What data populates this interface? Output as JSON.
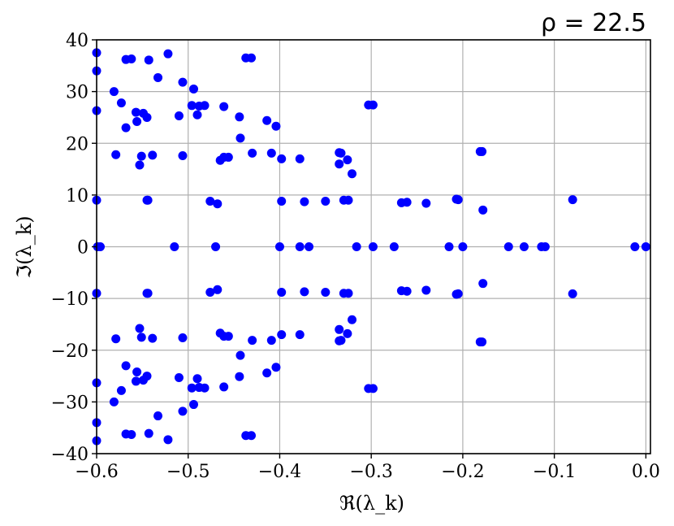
{
  "chart_data": {
    "type": "scatter",
    "title": "ρ = 22.5",
    "xlabel": "ℜ(λ_k)",
    "ylabel": "ℑ(λ_k)",
    "xlim": [
      -0.6,
      0.005
    ],
    "ylim": [
      -40,
      40
    ],
    "xticks": [
      -0.6,
      -0.5,
      -0.4,
      -0.3,
      -0.2,
      -0.1,
      0.0
    ],
    "xtick_labels": [
      "−0.6",
      "−0.5",
      "−0.4",
      "−0.3",
      "−0.2",
      "−0.1",
      "0.0"
    ],
    "yticks": [
      40,
      30,
      20,
      10,
      0,
      -10,
      -20,
      -30,
      -40
    ],
    "ytick_labels": [
      "40",
      "30",
      "20",
      "10",
      "0",
      "−10",
      "−20",
      "−30",
      "−40"
    ],
    "grid": true,
    "marker_color": "#0000ff",
    "points_upper": [
      [
        -0.6,
        37.5
      ],
      [
        -0.6,
        34.0
      ],
      [
        -0.6,
        26.3
      ],
      [
        -0.6,
        9.0
      ],
      [
        -0.581,
        30.0
      ],
      [
        -0.579,
        17.8
      ],
      [
        -0.573,
        27.8
      ],
      [
        -0.568,
        36.2
      ],
      [
        -0.562,
        36.3
      ],
      [
        -0.568,
        23.0
      ],
      [
        -0.557,
        26.0
      ],
      [
        -0.556,
        24.2
      ],
      [
        -0.553,
        15.8
      ],
      [
        -0.551,
        17.5
      ],
      [
        -0.549,
        25.8
      ],
      [
        -0.545,
        25.0
      ],
      [
        -0.545,
        9.0
      ],
      [
        -0.544,
        9.0
      ],
      [
        -0.543,
        36.1
      ],
      [
        -0.539,
        17.7
      ],
      [
        -0.533,
        32.7
      ],
      [
        -0.522,
        37.3
      ],
      [
        -0.51,
        25.3
      ],
      [
        -0.506,
        31.8
      ],
      [
        -0.506,
        17.6
      ],
      [
        -0.496,
        27.3
      ],
      [
        -0.494,
        30.5
      ],
      [
        -0.49,
        25.5
      ],
      [
        -0.488,
        27.2
      ],
      [
        -0.482,
        27.3
      ],
      [
        -0.476,
        8.8
      ],
      [
        -0.468,
        8.3
      ],
      [
        -0.465,
        16.7
      ],
      [
        -0.461,
        27.1
      ],
      [
        -0.461,
        17.3
      ],
      [
        -0.456,
        17.3
      ],
      [
        -0.444,
        25.1
      ],
      [
        -0.443,
        21.0
      ],
      [
        -0.437,
        36.5
      ],
      [
        -0.431,
        36.5
      ],
      [
        -0.43,
        18.1
      ],
      [
        -0.414,
        24.4
      ],
      [
        -0.409,
        18.1
      ],
      [
        -0.404,
        23.3
      ],
      [
        -0.398,
        17.0
      ],
      [
        -0.398,
        8.8
      ],
      [
        -0.378,
        17.0
      ],
      [
        -0.373,
        8.7
      ],
      [
        -0.35,
        8.8
      ],
      [
        -0.335,
        18.2
      ],
      [
        -0.333,
        18.1
      ],
      [
        -0.335,
        16.0
      ],
      [
        -0.33,
        9.0
      ],
      [
        -0.326,
        16.8
      ],
      [
        -0.325,
        9.0
      ],
      [
        -0.321,
        14.1
      ],
      [
        -0.303,
        27.4
      ],
      [
        -0.298,
        27.4
      ],
      [
        -0.267,
        8.5
      ],
      [
        -0.261,
        8.6
      ],
      [
        -0.24,
        8.4
      ],
      [
        -0.207,
        9.2
      ],
      [
        -0.205,
        9.1
      ],
      [
        -0.181,
        18.4
      ],
      [
        -0.179,
        18.4
      ],
      [
        -0.178,
        7.1
      ],
      [
        -0.08,
        9.1
      ]
    ],
    "points_real": [
      [
        -0.599,
        0
      ],
      [
        -0.596,
        0
      ],
      [
        -0.515,
        0
      ],
      [
        -0.47,
        0
      ],
      [
        -0.4,
        0
      ],
      [
        -0.378,
        0
      ],
      [
        -0.368,
        0
      ],
      [
        -0.316,
        0
      ],
      [
        -0.298,
        0
      ],
      [
        -0.275,
        0
      ],
      [
        -0.215,
        0
      ],
      [
        -0.2,
        0
      ],
      [
        -0.15,
        0
      ],
      [
        -0.133,
        0
      ],
      [
        -0.114,
        0
      ],
      [
        -0.11,
        0
      ],
      [
        -0.012,
        0
      ],
      [
        0.0,
        0
      ]
    ]
  }
}
